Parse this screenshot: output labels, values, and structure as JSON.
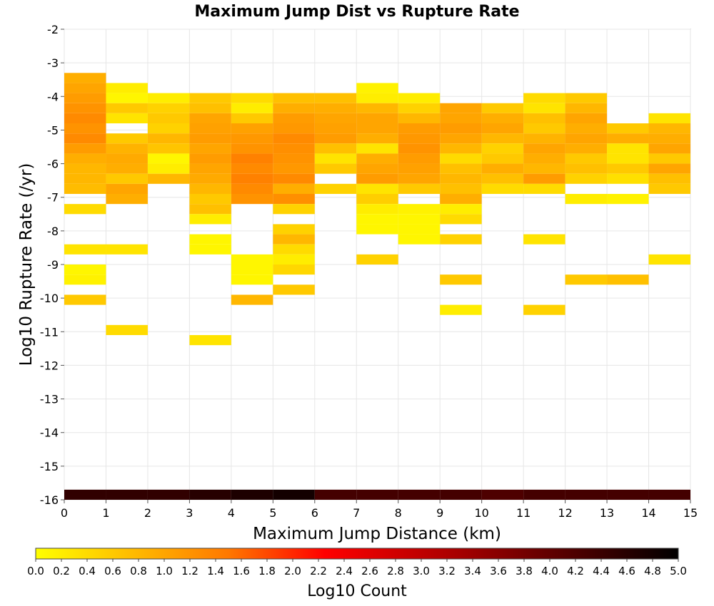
{
  "chart_data": {
    "type": "heatmap",
    "title": "Maximum Jump Dist vs Rupture Rate",
    "xlabel": "Maximum Jump Distance (km)",
    "ylabel": "Log10 Rupture Rate (/yr)",
    "xlim": [
      0,
      15
    ],
    "ylim": [
      -16,
      -2
    ],
    "x_ticks": [
      "0",
      "1",
      "2",
      "3",
      "4",
      "5",
      "6",
      "7",
      "8",
      "9",
      "10",
      "11",
      "12",
      "13",
      "14",
      "15"
    ],
    "y_ticks": [
      "-2",
      "-3",
      "-4",
      "-5",
      "-6",
      "-7",
      "-8",
      "-9",
      "-10",
      "-11",
      "-12",
      "-13",
      "-14",
      "-15",
      "-16"
    ],
    "grid": true,
    "cell_width": 1,
    "cell_height": 0.3,
    "colorbar": {
      "label": "Log10 Count",
      "min": 0,
      "max": 5,
      "ticks": [
        "0.0",
        "0.2",
        "0.4",
        "0.6",
        "0.8",
        "1.0",
        "1.2",
        "1.4",
        "1.6",
        "1.8",
        "2.0",
        "2.2",
        "2.4",
        "2.6",
        "2.8",
        "3.0",
        "3.2",
        "3.4",
        "3.6",
        "3.8",
        "4.0",
        "4.2",
        "4.4",
        "4.6",
        "4.8",
        "5.0"
      ],
      "colors": [
        "#ffff00",
        "#ffa500",
        "#ff7800",
        "#ff0000",
        "#aa0000",
        "#000000"
      ]
    },
    "columns": [
      {
        "x": 0,
        "cells": [
          [
            -3.3,
            0.9
          ],
          [
            -3.6,
            1.0
          ],
          [
            -3.9,
            1.1
          ],
          [
            -4.2,
            1.2
          ],
          [
            -4.5,
            1.3
          ],
          [
            -4.8,
            1.2
          ],
          [
            -5.1,
            1.3
          ],
          [
            -5.4,
            1.1
          ],
          [
            -5.7,
            0.9
          ],
          [
            -6.0,
            0.8
          ],
          [
            -6.3,
            0.8
          ],
          [
            -6.6,
            0.75
          ],
          [
            -7.2,
            0.4
          ],
          [
            -8.4,
            0.3
          ],
          [
            -9.0,
            0.1
          ],
          [
            -9.3,
            0.15
          ],
          [
            -9.9,
            0.6
          ]
        ]
      },
      {
        "x": 1,
        "cells": [
          [
            -3.6,
            0.2
          ],
          [
            -3.9,
            0.1
          ],
          [
            -4.2,
            0.6
          ],
          [
            -4.5,
            0.3
          ],
          [
            -5.1,
            0.6
          ],
          [
            -5.4,
            0.85
          ],
          [
            -5.7,
            0.95
          ],
          [
            -6.0,
            0.9
          ],
          [
            -6.3,
            0.6
          ],
          [
            -6.6,
            1.0
          ],
          [
            -6.9,
            0.9
          ],
          [
            -8.4,
            0.3
          ],
          [
            -10.8,
            0.4
          ]
        ]
      },
      {
        "x": 2,
        "cells": [
          [
            -3.9,
            0.2
          ],
          [
            -4.2,
            0.5
          ],
          [
            -4.5,
            0.6
          ],
          [
            -4.8,
            0.5
          ],
          [
            -5.1,
            0.8
          ],
          [
            -5.4,
            0.65
          ],
          [
            -5.7,
            0.1
          ],
          [
            -6.0,
            0.2
          ],
          [
            -6.3,
            0.8
          ]
        ]
      },
      {
        "x": 3,
        "cells": [
          [
            -3.9,
            0.6
          ],
          [
            -4.2,
            0.7
          ],
          [
            -4.5,
            1.0
          ],
          [
            -4.8,
            1.05
          ],
          [
            -5.1,
            1.1
          ],
          [
            -5.4,
            1.0
          ],
          [
            -5.7,
            1.1
          ],
          [
            -6.0,
            1.0
          ],
          [
            -6.3,
            0.95
          ],
          [
            -6.6,
            0.8
          ],
          [
            -6.9,
            0.6
          ],
          [
            -7.2,
            0.7
          ],
          [
            -7.5,
            0.2
          ],
          [
            -8.1,
            0.1
          ],
          [
            -8.4,
            0.1
          ],
          [
            -11.1,
            0.3
          ]
        ]
      },
      {
        "x": 4,
        "cells": [
          [
            -3.9,
            0.4
          ],
          [
            -4.2,
            0.2
          ],
          [
            -4.5,
            0.6
          ],
          [
            -4.8,
            1.05
          ],
          [
            -5.1,
            1.15
          ],
          [
            -5.4,
            1.2
          ],
          [
            -5.7,
            1.4
          ],
          [
            -6.0,
            1.3
          ],
          [
            -6.3,
            1.4
          ],
          [
            -6.6,
            1.3
          ],
          [
            -6.9,
            1.2
          ],
          [
            -8.7,
            0.1
          ],
          [
            -9.0,
            0.1
          ],
          [
            -9.3,
            0.1
          ],
          [
            -9.9,
            0.8
          ]
        ]
      },
      {
        "x": 5,
        "cells": [
          [
            -3.9,
            0.7
          ],
          [
            -4.2,
            0.9
          ],
          [
            -4.5,
            1.1
          ],
          [
            -4.8,
            1.15
          ],
          [
            -5.1,
            1.3
          ],
          [
            -5.4,
            1.25
          ],
          [
            -5.7,
            1.2
          ],
          [
            -6.0,
            1.15
          ],
          [
            -6.3,
            1.3
          ],
          [
            -6.6,
            0.9
          ],
          [
            -6.9,
            1.25
          ],
          [
            -7.2,
            0.5
          ],
          [
            -7.8,
            0.5
          ],
          [
            -8.1,
            0.8
          ],
          [
            -8.4,
            0.4
          ],
          [
            -8.7,
            0.2
          ],
          [
            -9.0,
            0.45
          ],
          [
            -9.6,
            0.6
          ]
        ]
      },
      {
        "x": 6,
        "cells": [
          [
            -3.9,
            0.7
          ],
          [
            -4.2,
            0.9
          ],
          [
            -4.5,
            1.0
          ],
          [
            -4.8,
            1.05
          ],
          [
            -5.1,
            1.1
          ],
          [
            -5.4,
            0.7
          ],
          [
            -5.7,
            0.3
          ],
          [
            -6.0,
            0.6
          ],
          [
            -6.6,
            0.5
          ]
        ]
      },
      {
        "x": 7,
        "cells": [
          [
            -3.6,
            0.15
          ],
          [
            -3.9,
            0.2
          ],
          [
            -4.2,
            0.8
          ],
          [
            -4.5,
            1.0
          ],
          [
            -4.8,
            1.0
          ],
          [
            -5.1,
            0.9
          ],
          [
            -5.4,
            0.3
          ],
          [
            -5.7,
            0.9
          ],
          [
            -6.0,
            1.0
          ],
          [
            -6.3,
            1.1
          ],
          [
            -6.6,
            0.3
          ],
          [
            -6.9,
            0.55
          ],
          [
            -7.2,
            0.2
          ],
          [
            -7.5,
            0.1
          ],
          [
            -7.8,
            0.1
          ],
          [
            -8.7,
            0.5
          ]
        ]
      },
      {
        "x": 8,
        "cells": [
          [
            -3.9,
            0.2
          ],
          [
            -4.2,
            0.5
          ],
          [
            -4.5,
            0.8
          ],
          [
            -4.8,
            1.1
          ],
          [
            -5.1,
            1.15
          ],
          [
            -5.4,
            1.2
          ],
          [
            -5.7,
            1.1
          ],
          [
            -6.0,
            1.05
          ],
          [
            -6.3,
            1.0
          ],
          [
            -6.6,
            0.6
          ],
          [
            -7.2,
            0.15
          ],
          [
            -7.5,
            0.1
          ],
          [
            -7.8,
            0.1
          ],
          [
            -8.1,
            0.1
          ]
        ]
      },
      {
        "x": 9,
        "cells": [
          [
            -4.2,
            1.0
          ],
          [
            -4.5,
            1.0
          ],
          [
            -4.8,
            1.1
          ],
          [
            -5.1,
            1.0
          ],
          [
            -5.4,
            0.8
          ],
          [
            -5.7,
            0.4
          ],
          [
            -6.0,
            0.7
          ],
          [
            -6.3,
            0.8
          ],
          [
            -6.6,
            0.7
          ],
          [
            -6.9,
            0.9
          ],
          [
            -7.2,
            0.2
          ],
          [
            -7.5,
            0.4
          ],
          [
            -8.1,
            0.5
          ],
          [
            -9.3,
            0.6
          ],
          [
            -10.2,
            0.2
          ]
        ]
      },
      {
        "x": 10,
        "cells": [
          [
            -4.2,
            0.6
          ],
          [
            -4.5,
            0.9
          ],
          [
            -4.8,
            1.0
          ],
          [
            -5.1,
            0.8
          ],
          [
            -5.4,
            0.5
          ],
          [
            -5.7,
            0.6
          ],
          [
            -6.0,
            0.9
          ],
          [
            -6.3,
            0.7
          ],
          [
            -6.6,
            0.4
          ]
        ]
      },
      {
        "x": 11,
        "cells": [
          [
            -3.9,
            0.4
          ],
          [
            -4.2,
            0.3
          ],
          [
            -4.5,
            0.7
          ],
          [
            -4.8,
            0.6
          ],
          [
            -5.1,
            0.85
          ],
          [
            -5.4,
            1.0
          ],
          [
            -5.7,
            0.9
          ],
          [
            -6.0,
            0.8
          ],
          [
            -6.3,
            1.1
          ],
          [
            -6.6,
            0.4
          ],
          [
            -8.1,
            0.3
          ],
          [
            -10.2,
            0.5
          ]
        ]
      },
      {
        "x": 12,
        "cells": [
          [
            -3.9,
            0.6
          ],
          [
            -4.2,
            0.8
          ],
          [
            -4.5,
            1.0
          ],
          [
            -4.8,
            0.9
          ],
          [
            -5.1,
            1.0
          ],
          [
            -5.4,
            0.9
          ],
          [
            -5.7,
            0.6
          ],
          [
            -6.0,
            0.7
          ],
          [
            -6.3,
            0.5
          ],
          [
            -6.9,
            0.2
          ],
          [
            -9.3,
            0.6
          ]
        ]
      },
      {
        "x": 13,
        "cells": [
          [
            -4.8,
            0.6
          ],
          [
            -5.1,
            0.9
          ],
          [
            -5.4,
            0.3
          ],
          [
            -5.7,
            0.3
          ],
          [
            -6.0,
            0.6
          ],
          [
            -6.3,
            0.35
          ],
          [
            -6.9,
            0.15
          ],
          [
            -9.3,
            0.7
          ]
        ]
      },
      {
        "x": 14,
        "cells": [
          [
            -4.5,
            0.3
          ],
          [
            -4.8,
            0.8
          ],
          [
            -5.1,
            0.9
          ],
          [
            -5.4,
            1.0
          ],
          [
            -5.7,
            0.6
          ],
          [
            -6.0,
            1.0
          ],
          [
            -6.3,
            0.7
          ],
          [
            -6.6,
            0.6
          ],
          [
            -8.7,
            0.3
          ]
        ]
      }
    ],
    "bottom_band": {
      "y": -16.0,
      "values": [
        4.5,
        4.5,
        4.5,
        4.6,
        4.7,
        4.8,
        4.3,
        4.3,
        4.3,
        4.3,
        4.2,
        4.3,
        4.3,
        4.3,
        4.3
      ]
    }
  }
}
